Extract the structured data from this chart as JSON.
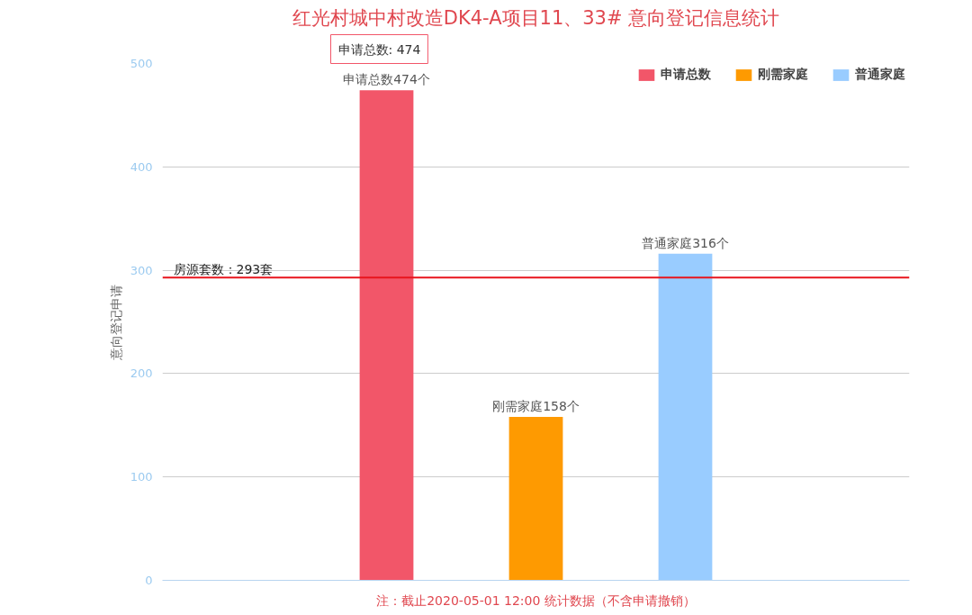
{
  "chart_data": {
    "type": "bar",
    "title": "红光村城中村改造DK4-A项目11、33# 意向登记信息统计",
    "ylabel": "意向登记申请",
    "categories": [
      null,
      null,
      null,
      null,
      null
    ],
    "series": [
      {
        "name": "申请总数",
        "color": "#f25669",
        "values": [
          null,
          474,
          null,
          null,
          null
        ],
        "value_labels": [
          null,
          "申请总数474个",
          null,
          null,
          null
        ]
      },
      {
        "name": "刚需家庭",
        "color": "#fe9a01",
        "values": [
          null,
          null,
          158,
          null,
          null
        ],
        "value_labels": [
          null,
          null,
          "刚需家庭158个",
          null,
          null
        ]
      },
      {
        "name": "普通家庭",
        "color": "#99ccff",
        "values": [
          null,
          null,
          null,
          316,
          null
        ],
        "value_labels": [
          null,
          null,
          null,
          "普通家庭316个",
          null
        ]
      }
    ],
    "ylim": [
      0,
      500
    ],
    "yticks": [
      0,
      100,
      200,
      300,
      400,
      500
    ],
    "grid": "y",
    "legend": "top right",
    "tick_labels": "y",
    "ref_lines": [
      {
        "axis": "y",
        "value": 293,
        "label": "房源套数：293套",
        "color": "#e8141c"
      }
    ],
    "annotations": [
      {
        "text": "申请总数: 474",
        "y": 474
      },
      "注：截止2020-05-01 12:00 统计数据（不含申请撤销）"
    ]
  }
}
